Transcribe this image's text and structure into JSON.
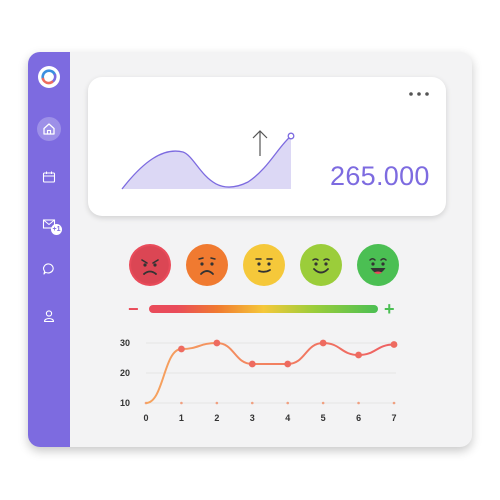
{
  "colors": {
    "accent": "#7d6be0",
    "sidebar_bg": "#7d6be0",
    "window_bg": "#f3f3f4",
    "card_bg": "#ffffff",
    "area_fill": "#dcd8f5",
    "area_stroke": "#7d6be0",
    "line_stroke": "#f07f6b",
    "point_fill": "#ee6b60",
    "minus_color": "#e94b5a",
    "plus_color": "#4bbf53"
  },
  "sidebar": {
    "items": [
      {
        "icon": "home-icon"
      },
      {
        "icon": "calendar-icon"
      },
      {
        "icon": "mail-icon",
        "badge": "+1"
      },
      {
        "icon": "chat-icon"
      },
      {
        "icon": "user-icon"
      }
    ]
  },
  "summary_card": {
    "value": "265.000",
    "menu_icon": "more-horizontal-icon",
    "trend_icon": "arrow-up-icon"
  },
  "mood_scale": {
    "faces": [
      {
        "name": "angry",
        "icon": "angry-face-icon",
        "color": "#e94b5a"
      },
      {
        "name": "sad",
        "icon": "sad-face-icon",
        "color": "#f07a30"
      },
      {
        "name": "neutral",
        "icon": "neutral-face-icon",
        "color": "#f5c83a"
      },
      {
        "name": "happy",
        "icon": "happy-face-icon",
        "color": "#9bcd3a"
      },
      {
        "name": "very-happy",
        "icon": "very-happy-face-icon",
        "color": "#4bbf53"
      }
    ],
    "minus_label": "−",
    "plus_label": "+",
    "bar_colors": [
      "#e94b5a",
      "#f07a30",
      "#f5c83a",
      "#9bcd3a",
      "#4bbf53"
    ]
  },
  "chart_data": {
    "type": "line",
    "x": [
      0,
      1,
      2,
      3,
      4,
      5,
      6,
      7
    ],
    "series": [
      {
        "values": [
          10,
          28,
          30,
          23,
          23,
          30,
          26,
          29.5
        ]
      }
    ],
    "x_ticks": [
      "0",
      "1",
      "2",
      "3",
      "4",
      "5",
      "6",
      "7"
    ],
    "y_ticks": [
      "10",
      "20",
      "30"
    ],
    "ylim": [
      10,
      30
    ],
    "xlim": [
      0,
      7
    ],
    "grid": true
  }
}
